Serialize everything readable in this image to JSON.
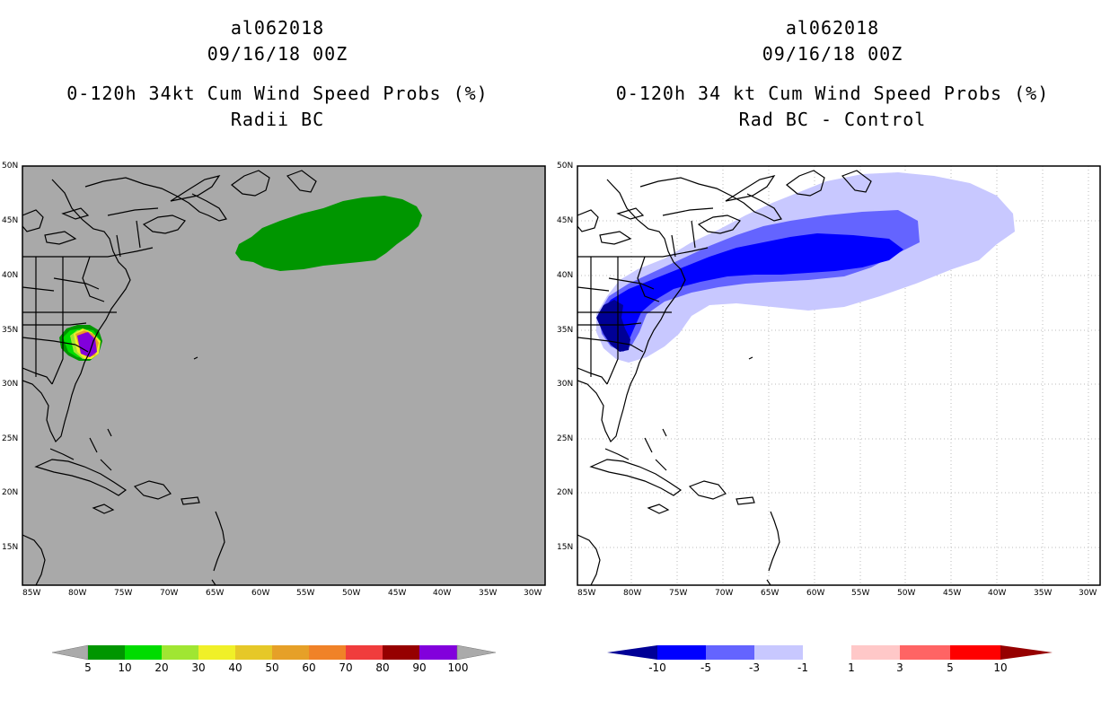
{
  "left_panel": {
    "storm_id": "al062018",
    "datetime": "09/16/18 00Z",
    "product": "0-120h 34kt Cum Wind Speed Probs (%)",
    "subtitle": "Radii BC",
    "background_color": "#a9a9a9",
    "colorbar": {
      "labels": [
        "5",
        "10",
        "20",
        "30",
        "40",
        "50",
        "60",
        "70",
        "80",
        "90",
        "100"
      ],
      "colors": [
        "#aaaaaa",
        "#009600",
        "#00dc00",
        "#a0e632",
        "#f0f028",
        "#e6c828",
        "#e6a028",
        "#f08228",
        "#f03c3c",
        "#960000",
        "#8200dc",
        "#aaaaaa"
      ]
    }
  },
  "right_panel": {
    "storm_id": "al062018",
    "datetime": "09/16/18 00Z",
    "product": "0-120h 34 kt Cum Wind Speed Probs (%)",
    "subtitle": "Rad BC - Control",
    "background_color": "#ffffff",
    "colorbar": {
      "labels": [
        "-10",
        "-5",
        "-3",
        "-1",
        "1",
        "3",
        "5",
        "10"
      ],
      "colors": [
        "#000096",
        "#0000ff",
        "#6464ff",
        "#c8c8ff",
        "#ffffff",
        "#ffc8c8",
        "#ff6464",
        "#ff0000",
        "#960000"
      ]
    }
  },
  "axes": {
    "lat_labels": [
      "50N",
      "45N",
      "40N",
      "35N",
      "30N",
      "25N",
      "20N",
      "15N"
    ],
    "lon_labels": [
      "85W",
      "80W",
      "75W",
      "70W",
      "65W",
      "60W",
      "55W",
      "50W",
      "45W",
      "40W",
      "35W",
      "30W"
    ]
  },
  "colors": {
    "prob_green": "#009600",
    "diff_light": "#c8c8ff",
    "diff_mid": "#6464ff",
    "diff_strong": "#0000ff",
    "diff_dark": "#000096"
  }
}
